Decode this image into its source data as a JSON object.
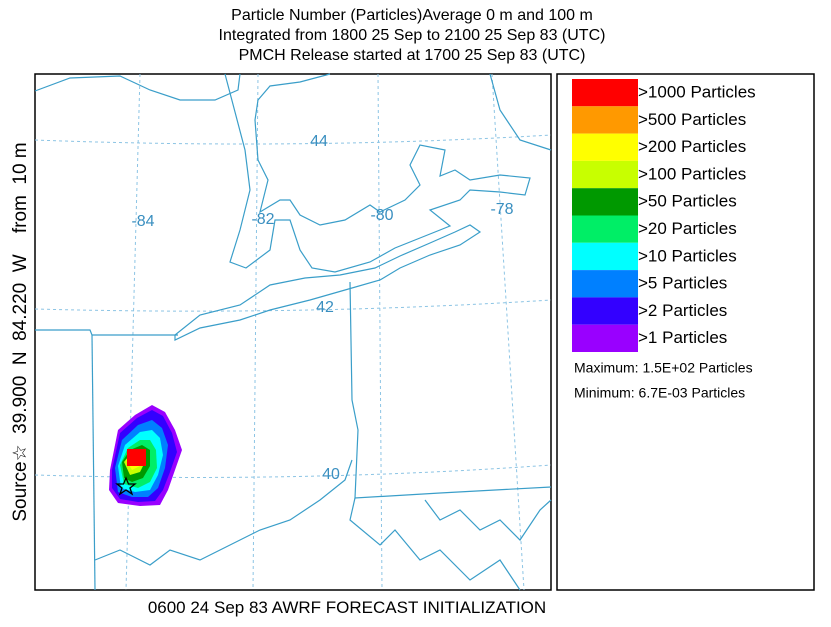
{
  "header": {
    "lines": [
      "Particle Number (Particles)Average    0 m and   100 m",
      "Integrated from 1800 25 Sep to 2100 25 Sep 83 (UTC)",
      "PMCH Release started at 1700 25 Sep 83 (UTC)"
    ]
  },
  "side_label": "Source☆  39.900  N  84.220  W    from  10 m",
  "map": {
    "lon_labels": [
      "-84",
      "-82",
      "-80",
      "-78"
    ],
    "lat_labels": [
      "44",
      "42",
      "40"
    ]
  },
  "legend": {
    "items": [
      {
        "label": ">1000 Particles",
        "color": "#ff0000"
      },
      {
        "label": ">500 Particles",
        "color": "#ff9900"
      },
      {
        "label": ">200 Particles",
        "color": "#ffff00"
      },
      {
        "label": ">100 Particles",
        "color": "#c8ff00"
      },
      {
        "label": ">50 Particles",
        "color": "#009900"
      },
      {
        "label": ">20 Particles",
        "color": "#00ee66"
      },
      {
        "label": ">10 Particles",
        "color": "#00ffff"
      },
      {
        "label": ">5 Particles",
        "color": "#0080ff"
      },
      {
        "label": ">2 Particles",
        "color": "#3300ff"
      },
      {
        "label": ">1 Particles",
        "color": "#9900ff"
      }
    ],
    "maximum": "Maximum: 1.5E+02 Particles",
    "minimum": "Minimum: 6.7E-03 Particles"
  },
  "footer": "0600 24 Sep 83 AWRF FORECAST INITIALIZATION"
}
